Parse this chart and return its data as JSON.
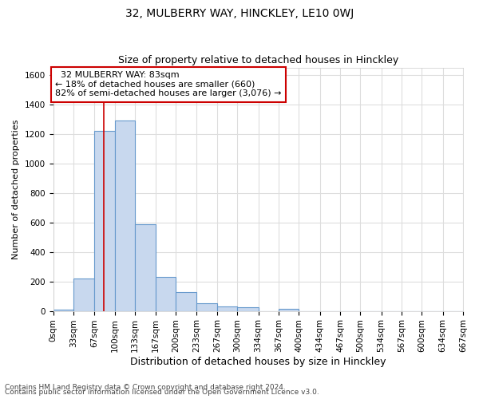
{
  "title1": "32, MULBERRY WAY, HINCKLEY, LE10 0WJ",
  "title2": "Size of property relative to detached houses in Hinckley",
  "xlabel": "Distribution of detached houses by size in Hinckley",
  "ylabel": "Number of detached properties",
  "footer1": "Contains HM Land Registry data © Crown copyright and database right 2024.",
  "footer2": "Contains public sector information licensed under the Open Government Licence v3.0.",
  "bin_edges": [
    0,
    33,
    67,
    100,
    133,
    167,
    200,
    233,
    267,
    300,
    334,
    367,
    400,
    434,
    467,
    500,
    534,
    567,
    600,
    634,
    667
  ],
  "bar_heights": [
    10,
    220,
    1220,
    1290,
    590,
    230,
    130,
    50,
    30,
    25,
    0,
    15,
    0,
    0,
    0,
    0,
    0,
    0,
    0,
    0
  ],
  "bar_color": "#c8d8ee",
  "bar_edge_color": "#6699cc",
  "property_size": 83,
  "property_label": "32 MULBERRY WAY: 83sqm",
  "pct_smaller": "18% of detached houses are smaller (660)",
  "pct_larger": "82% of semi-detached houses are larger (3,076)",
  "annotation_box_color": "#cc0000",
  "vline_color": "#cc0000",
  "ylim": [
    0,
    1650
  ],
  "yticks": [
    0,
    200,
    400,
    600,
    800,
    1000,
    1200,
    1400,
    1600
  ],
  "bg_color": "#ffffff",
  "grid_color": "#dddddd",
  "title1_fontsize": 10,
  "title2_fontsize": 9,
  "xlabel_fontsize": 9,
  "ylabel_fontsize": 8,
  "tick_fontsize": 7.5,
  "annotation_fontsize": 8,
  "footer_fontsize": 6.5
}
